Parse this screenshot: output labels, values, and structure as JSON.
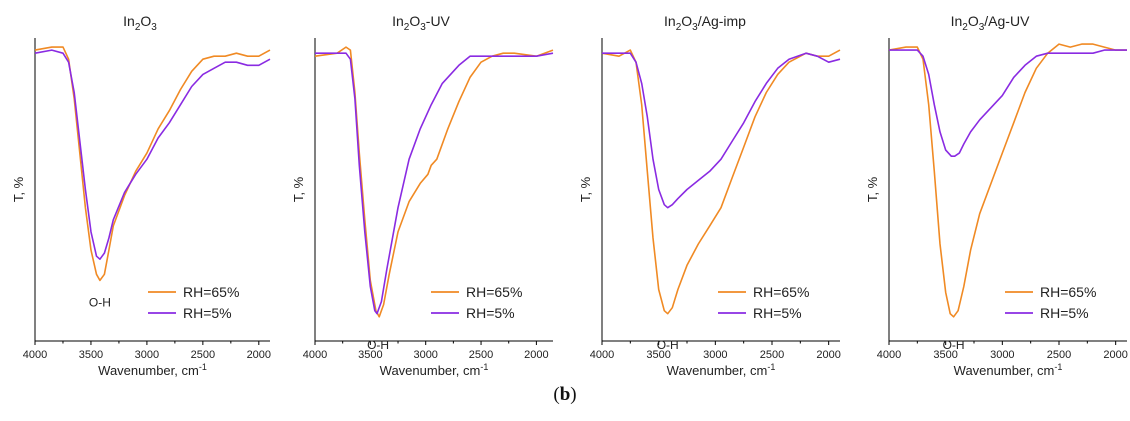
{
  "caption": {
    "open": "(",
    "letter": "b",
    "close": ")"
  },
  "colors": {
    "rh65": "#f08a24",
    "rh5": "#8a2be2",
    "axis": "#000000"
  },
  "chart_data": [
    {
      "type": "line",
      "title_base": "In",
      "title_sub": "2",
      "title_tail": "O",
      "title_sub2": "3",
      "title_rest": "",
      "xlabel_base": "Wavenumber, cm",
      "xlabel_sup": "-1",
      "ylabel": "T, %",
      "xlim": [
        4000,
        1900
      ],
      "ylim": [
        0,
        1
      ],
      "y_ticks_labeled": false,
      "x_ticks": [
        4000,
        3500,
        3000,
        2500,
        2000
      ],
      "annotation": {
        "text": "O-H",
        "x": 3420,
        "y": 0.16
      },
      "legend": [
        "RH=65%",
        "RH=5%"
      ],
      "legend_position": "bottom-right",
      "series": [
        {
          "name": "RH=65%",
          "color": "#f08a24",
          "points": [
            [
              4000,
              0.96
            ],
            [
              3850,
              0.97
            ],
            [
              3750,
              0.97
            ],
            [
              3700,
              0.93
            ],
            [
              3650,
              0.8
            ],
            [
              3600,
              0.62
            ],
            [
              3550,
              0.44
            ],
            [
              3500,
              0.3
            ],
            [
              3450,
              0.22
            ],
            [
              3420,
              0.2
            ],
            [
              3380,
              0.22
            ],
            [
              3340,
              0.3
            ],
            [
              3300,
              0.38
            ],
            [
              3200,
              0.48
            ],
            [
              3100,
              0.56
            ],
            [
              3000,
              0.62
            ],
            [
              2900,
              0.7
            ],
            [
              2800,
              0.76
            ],
            [
              2700,
              0.83
            ],
            [
              2600,
              0.89
            ],
            [
              2500,
              0.93
            ],
            [
              2400,
              0.94
            ],
            [
              2300,
              0.94
            ],
            [
              2200,
              0.95
            ],
            [
              2100,
              0.94
            ],
            [
              2000,
              0.94
            ],
            [
              1900,
              0.96
            ]
          ]
        },
        {
          "name": "RH=5%",
          "color": "#8a2be2",
          "points": [
            [
              4000,
              0.95
            ],
            [
              3850,
              0.96
            ],
            [
              3750,
              0.95
            ],
            [
              3700,
              0.92
            ],
            [
              3650,
              0.82
            ],
            [
              3600,
              0.66
            ],
            [
              3550,
              0.5
            ],
            [
              3500,
              0.36
            ],
            [
              3450,
              0.28
            ],
            [
              3420,
              0.27
            ],
            [
              3380,
              0.29
            ],
            [
              3340,
              0.34
            ],
            [
              3300,
              0.4
            ],
            [
              3200,
              0.49
            ],
            [
              3100,
              0.55
            ],
            [
              3000,
              0.6
            ],
            [
              2900,
              0.67
            ],
            [
              2800,
              0.72
            ],
            [
              2700,
              0.78
            ],
            [
              2600,
              0.84
            ],
            [
              2500,
              0.88
            ],
            [
              2400,
              0.9
            ],
            [
              2300,
              0.92
            ],
            [
              2200,
              0.92
            ],
            [
              2100,
              0.91
            ],
            [
              2000,
              0.91
            ],
            [
              1900,
              0.93
            ]
          ]
        }
      ]
    },
    {
      "type": "line",
      "title_base": "In",
      "title_sub": "2",
      "title_tail": "O",
      "title_sub2": "3",
      "title_rest": "-UV",
      "xlabel_base": "Wavenumber, cm",
      "xlabel_sup": "-1",
      "ylabel": "T, %",
      "xlim": [
        4000,
        1850
      ],
      "ylim": [
        0,
        1
      ],
      "y_ticks_labeled": false,
      "x_ticks": [
        4000,
        3500,
        3000,
        2500,
        2000
      ],
      "annotation": {
        "text": "O-H",
        "x": 3430,
        "y": 0.02
      },
      "legend": [
        "RH=65%",
        "RH=5%"
      ],
      "legend_position": "bottom-right",
      "series": [
        {
          "name": "RH=65%",
          "color": "#f08a24",
          "points": [
            [
              4000,
              0.94
            ],
            [
              3800,
              0.95
            ],
            [
              3720,
              0.97
            ],
            [
              3680,
              0.96
            ],
            [
              3640,
              0.82
            ],
            [
              3600,
              0.62
            ],
            [
              3550,
              0.4
            ],
            [
              3500,
              0.2
            ],
            [
              3450,
              0.1
            ],
            [
              3420,
              0.08
            ],
            [
              3380,
              0.12
            ],
            [
              3330,
              0.22
            ],
            [
              3250,
              0.36
            ],
            [
              3150,
              0.46
            ],
            [
              3050,
              0.52
            ],
            [
              2980,
              0.55
            ],
            [
              2950,
              0.58
            ],
            [
              2900,
              0.6
            ],
            [
              2800,
              0.7
            ],
            [
              2700,
              0.79
            ],
            [
              2600,
              0.87
            ],
            [
              2500,
              0.92
            ],
            [
              2400,
              0.94
            ],
            [
              2300,
              0.95
            ],
            [
              2200,
              0.95
            ],
            [
              2000,
              0.94
            ],
            [
              1850,
              0.96
            ]
          ]
        },
        {
          "name": "RH=5%",
          "color": "#8a2be2",
          "points": [
            [
              4000,
              0.95
            ],
            [
              3800,
              0.95
            ],
            [
              3720,
              0.95
            ],
            [
              3680,
              0.93
            ],
            [
              3640,
              0.8
            ],
            [
              3600,
              0.58
            ],
            [
              3550,
              0.36
            ],
            [
              3500,
              0.18
            ],
            [
              3460,
              0.1
            ],
            [
              3440,
              0.09
            ],
            [
              3400,
              0.13
            ],
            [
              3350,
              0.24
            ],
            [
              3250,
              0.44
            ],
            [
              3150,
              0.6
            ],
            [
              3050,
              0.7
            ],
            [
              2950,
              0.78
            ],
            [
              2850,
              0.85
            ],
            [
              2700,
              0.91
            ],
            [
              2600,
              0.94
            ],
            [
              2500,
              0.94
            ],
            [
              2400,
              0.94
            ],
            [
              2300,
              0.94
            ],
            [
              2200,
              0.94
            ],
            [
              2000,
              0.94
            ],
            [
              1850,
              0.95
            ]
          ]
        }
      ]
    },
    {
      "type": "line",
      "title_base": "In",
      "title_sub": "2",
      "title_tail": "O",
      "title_sub2": "3",
      "title_rest": "/Ag-imp",
      "xlabel_base": "Wavenumber, cm",
      "xlabel_sup": "-1",
      "ylabel": "T, %",
      "xlim": [
        4000,
        1900
      ],
      "ylim": [
        0,
        1
      ],
      "y_ticks_labeled": false,
      "x_ticks": [
        4000,
        3500,
        3000,
        2500,
        2000
      ],
      "annotation": {
        "text": "O-H",
        "x": 3420,
        "y": 0.02
      },
      "legend": [
        "RH=65%",
        "RH=5%"
      ],
      "legend_position": "bottom-right",
      "series": [
        {
          "name": "RH=65%",
          "color": "#f08a24",
          "points": [
            [
              4000,
              0.95
            ],
            [
              3850,
              0.94
            ],
            [
              3750,
              0.96
            ],
            [
              3700,
              0.92
            ],
            [
              3650,
              0.78
            ],
            [
              3600,
              0.56
            ],
            [
              3550,
              0.34
            ],
            [
              3500,
              0.17
            ],
            [
              3450,
              0.1
            ],
            [
              3420,
              0.09
            ],
            [
              3380,
              0.11
            ],
            [
              3330,
              0.17
            ],
            [
              3250,
              0.25
            ],
            [
              3150,
              0.32
            ],
            [
              3050,
              0.38
            ],
            [
              2950,
              0.44
            ],
            [
              2850,
              0.54
            ],
            [
              2750,
              0.64
            ],
            [
              2650,
              0.74
            ],
            [
              2550,
              0.82
            ],
            [
              2450,
              0.88
            ],
            [
              2350,
              0.92
            ],
            [
              2200,
              0.95
            ],
            [
              2100,
              0.94
            ],
            [
              2000,
              0.94
            ],
            [
              1900,
              0.96
            ]
          ]
        },
        {
          "name": "RH=5%",
          "color": "#8a2be2",
          "points": [
            [
              4000,
              0.95
            ],
            [
              3850,
              0.95
            ],
            [
              3750,
              0.95
            ],
            [
              3700,
              0.92
            ],
            [
              3650,
              0.85
            ],
            [
              3600,
              0.74
            ],
            [
              3550,
              0.6
            ],
            [
              3500,
              0.5
            ],
            [
              3450,
              0.45
            ],
            [
              3420,
              0.44
            ],
            [
              3380,
              0.45
            ],
            [
              3330,
              0.47
            ],
            [
              3250,
              0.5
            ],
            [
              3150,
              0.53
            ],
            [
              3050,
              0.56
            ],
            [
              2950,
              0.6
            ],
            [
              2850,
              0.66
            ],
            [
              2750,
              0.72
            ],
            [
              2650,
              0.79
            ],
            [
              2550,
              0.85
            ],
            [
              2450,
              0.9
            ],
            [
              2350,
              0.93
            ],
            [
              2200,
              0.95
            ],
            [
              2100,
              0.94
            ],
            [
              2000,
              0.92
            ],
            [
              1900,
              0.93
            ]
          ]
        }
      ]
    },
    {
      "type": "line",
      "title_base": "In",
      "title_sub": "2",
      "title_tail": "O",
      "title_sub2": "3",
      "title_rest": "/Ag-UV",
      "xlabel_base": "Wavenumber, cm",
      "xlabel_sup": "-1",
      "ylabel": "T, %",
      "xlim": [
        4000,
        1900
      ],
      "ylim": [
        0,
        1
      ],
      "y_ticks_labeled": false,
      "x_ticks": [
        4000,
        3500,
        3000,
        2500,
        2000
      ],
      "annotation": {
        "text": "O-H",
        "x": 3430,
        "y": 0.02
      },
      "legend": [
        "RH=65%",
        "RH=5%"
      ],
      "legend_position": "bottom-right",
      "series": [
        {
          "name": "RH=65%",
          "color": "#f08a24",
          "points": [
            [
              4000,
              0.96
            ],
            [
              3850,
              0.97
            ],
            [
              3750,
              0.97
            ],
            [
              3700,
              0.93
            ],
            [
              3650,
              0.78
            ],
            [
              3600,
              0.56
            ],
            [
              3550,
              0.32
            ],
            [
              3500,
              0.16
            ],
            [
              3460,
              0.09
            ],
            [
              3430,
              0.08
            ],
            [
              3390,
              0.1
            ],
            [
              3340,
              0.18
            ],
            [
              3280,
              0.3
            ],
            [
              3200,
              0.42
            ],
            [
              3100,
              0.52
            ],
            [
              3000,
              0.62
            ],
            [
              2900,
              0.72
            ],
            [
              2800,
              0.82
            ],
            [
              2700,
              0.9
            ],
            [
              2600,
              0.95
            ],
            [
              2500,
              0.98
            ],
            [
              2400,
              0.97
            ],
            [
              2300,
              0.98
            ],
            [
              2200,
              0.98
            ],
            [
              2100,
              0.97
            ],
            [
              2000,
              0.96
            ],
            [
              1900,
              0.96
            ]
          ]
        },
        {
          "name": "RH=5%",
          "color": "#8a2be2",
          "points": [
            [
              4000,
              0.96
            ],
            [
              3850,
              0.96
            ],
            [
              3750,
              0.96
            ],
            [
              3700,
              0.94
            ],
            [
              3650,
              0.88
            ],
            [
              3600,
              0.78
            ],
            [
              3550,
              0.69
            ],
            [
              3500,
              0.63
            ],
            [
              3450,
              0.61
            ],
            [
              3420,
              0.61
            ],
            [
              3380,
              0.62
            ],
            [
              3340,
              0.65
            ],
            [
              3280,
              0.69
            ],
            [
              3200,
              0.73
            ],
            [
              3100,
              0.77
            ],
            [
              3000,
              0.81
            ],
            [
              2900,
              0.87
            ],
            [
              2800,
              0.91
            ],
            [
              2700,
              0.94
            ],
            [
              2600,
              0.95
            ],
            [
              2500,
              0.95
            ],
            [
              2400,
              0.95
            ],
            [
              2300,
              0.95
            ],
            [
              2200,
              0.95
            ],
            [
              2100,
              0.96
            ],
            [
              2000,
              0.96
            ],
            [
              1900,
              0.96
            ]
          ]
        }
      ]
    }
  ]
}
